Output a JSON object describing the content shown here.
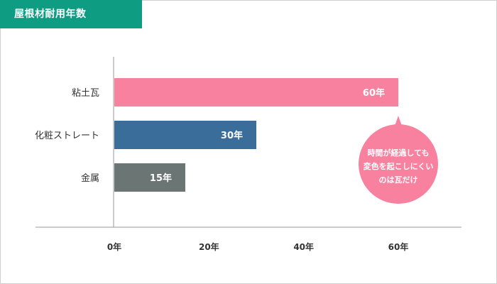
{
  "header": {
    "title": "屋根材耐用年数"
  },
  "chart_data": {
    "type": "bar",
    "orientation": "horizontal",
    "title": "屋根材耐用年数",
    "categories": [
      "粘土瓦",
      "化粧ストレート",
      "金属"
    ],
    "values": [
      60,
      30,
      15
    ],
    "value_labels": [
      "60年",
      "30年",
      "15年"
    ],
    "colors": [
      "#f8819f",
      "#3a6d9a",
      "#6b7573"
    ],
    "xticks": [
      0,
      20,
      40,
      60
    ],
    "xtick_labels": [
      "0年",
      "20年",
      "40年",
      "60年"
    ],
    "xlim": [
      0,
      70
    ],
    "grid": false,
    "annotation": {
      "lines": [
        "時間が経過しても",
        "変色を起こしにくい",
        "のは瓦だけ"
      ],
      "color": "#f8819f",
      "target_category": "粘土瓦"
    }
  }
}
